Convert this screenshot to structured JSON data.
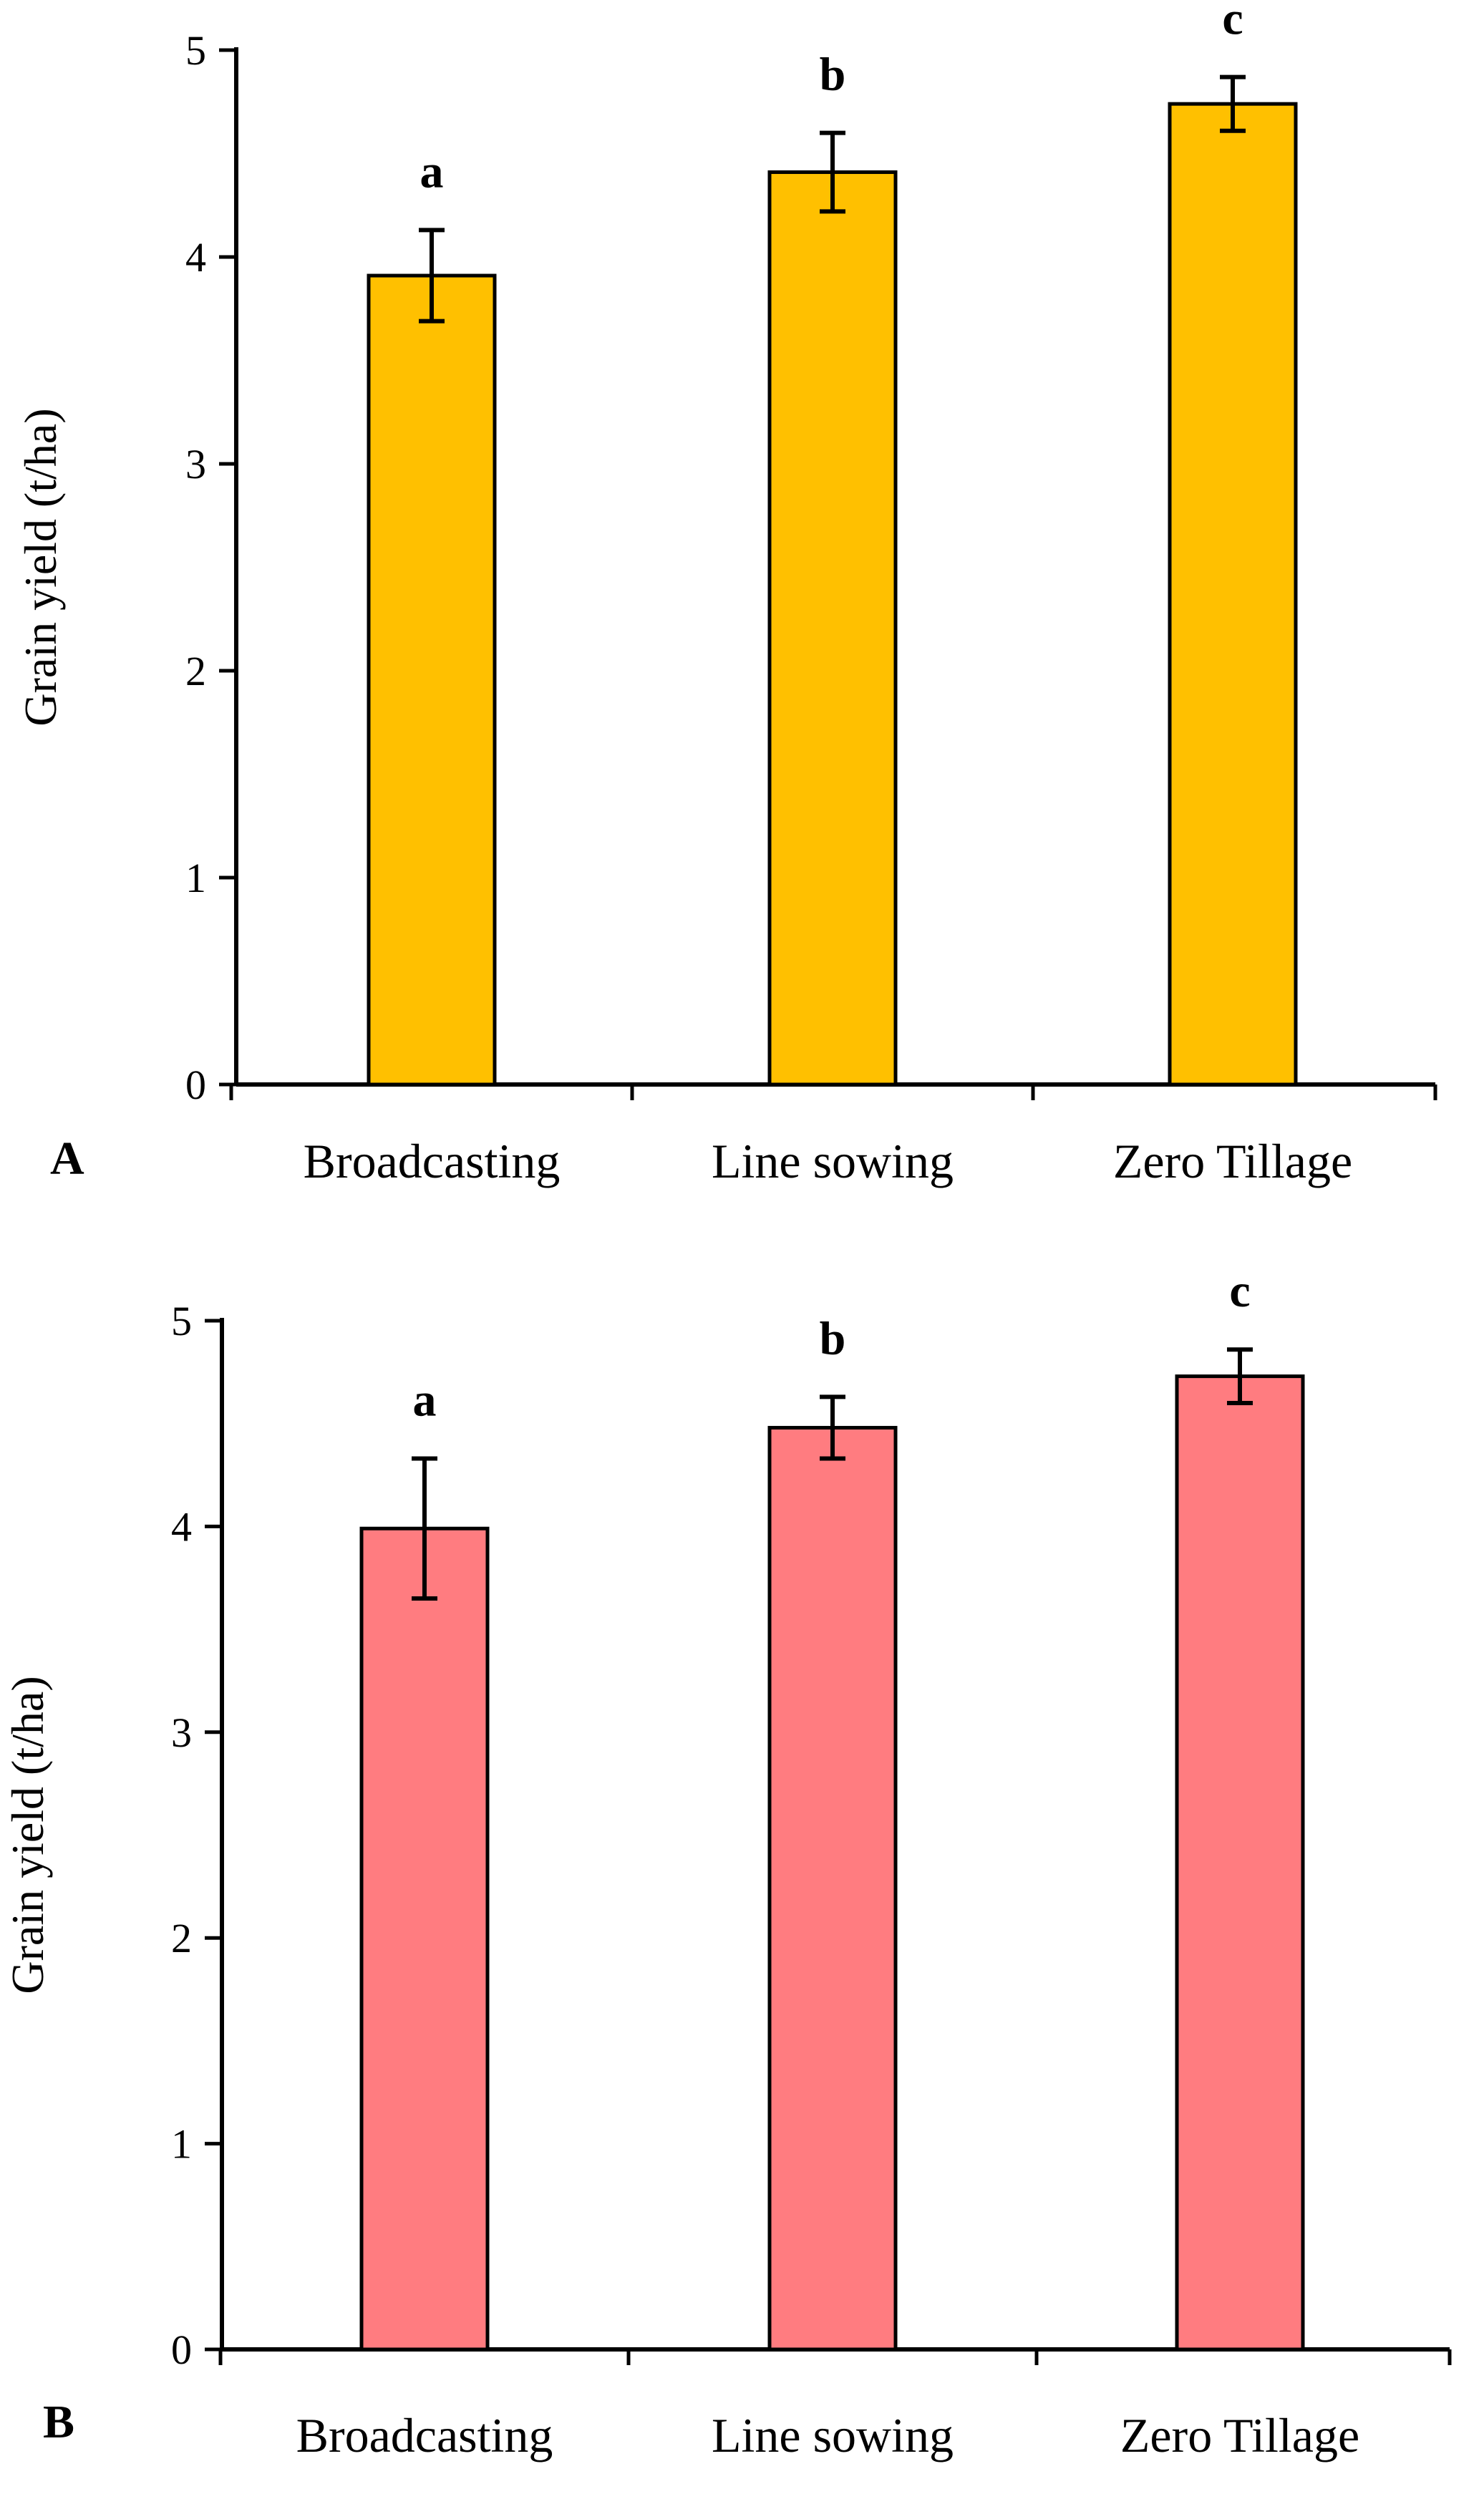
{
  "colors": {
    "panel_a_bar": "#FFC000",
    "panel_b_bar": "#FF7C80",
    "axis": "#000000"
  },
  "chart_data": [
    {
      "type": "bar",
      "panel_label": "A",
      "title": "",
      "xlabel": "",
      "ylabel": "Grain yield (t/ha)",
      "ylim": [
        0,
        5
      ],
      "yticks": [
        "0",
        "1",
        "2",
        "3",
        "4",
        "5"
      ],
      "grid": false,
      "categories": [
        "Broadcasting",
        "Line sowing",
        "Zero Tillage"
      ],
      "values": [
        3.91,
        4.41,
        4.74
      ],
      "errors": [
        0.22,
        0.19,
        0.13
      ],
      "significance": [
        "a",
        "b",
        "c"
      ],
      "bar_color": "#FFC000"
    },
    {
      "type": "bar",
      "panel_label": "B",
      "title": "",
      "xlabel": "",
      "ylabel": "Grain yield (t/ha)",
      "ylim": [
        0,
        5
      ],
      "yticks": [
        "0",
        "1",
        "2",
        "3",
        "4",
        "5"
      ],
      "grid": false,
      "categories": [
        "Broadcasting",
        "Line sowing",
        "Zero Tillage"
      ],
      "values": [
        3.99,
        4.48,
        4.73
      ],
      "errors": [
        0.34,
        0.15,
        0.13
      ],
      "significance": [
        "a",
        "b",
        "c"
      ],
      "bar_color": "#FF7C80"
    }
  ]
}
